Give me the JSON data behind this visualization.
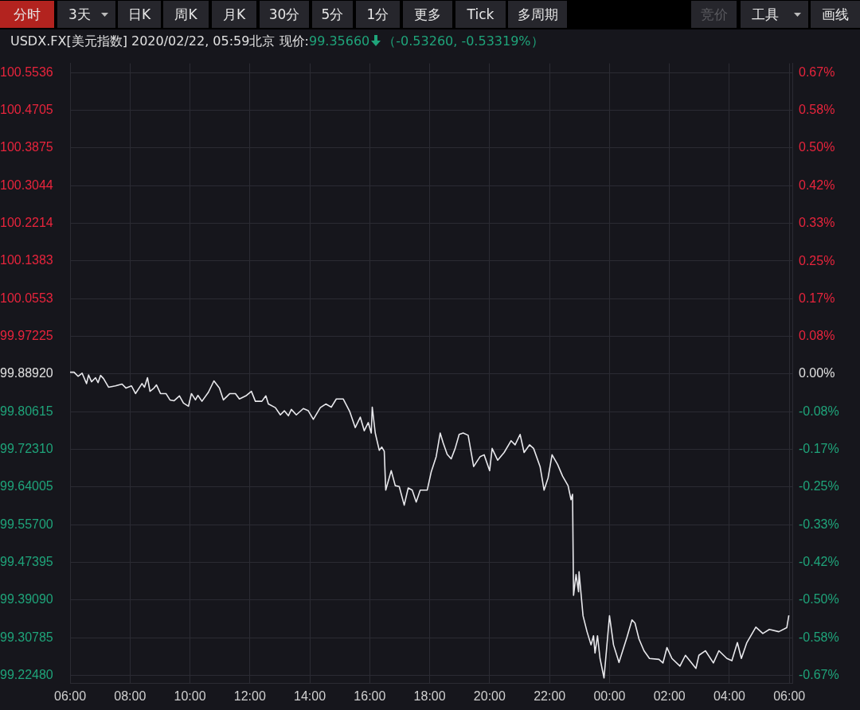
{
  "chart_data": {
    "type": "line",
    "title": "USDX.FX[美元指数]  2020/02/22, 05:59北京 现价:",
    "annotations": [
      "99.35660",
      "（-0.53260, -0.53319%）",
      "分时",
      "3天",
      "日K",
      "周K",
      "月K",
      "30分",
      "5分",
      "1分",
      "更多",
      "Tick",
      "多周期",
      "竞价",
      "工具",
      "画线"
    ],
    "x": [
      "2020-02-21T06:00",
      "2020-02-21T06:08",
      "2020-02-21T06:16",
      "2020-02-21T06:24",
      "2020-02-21T06:33",
      "2020-02-21T06:37",
      "2020-02-21T06:43",
      "2020-02-21T06:51",
      "2020-02-21T06:56",
      "2020-02-21T07:01",
      "2020-02-21T07:07",
      "2020-02-21T07:17",
      "2020-02-21T07:31",
      "2020-02-21T07:44",
      "2020-02-21T07:52",
      "2020-02-21T08:03",
      "2020-02-21T08:11",
      "2020-02-21T08:24",
      "2020-02-21T08:29",
      "2020-02-21T08:35",
      "2020-02-21T08:40",
      "2020-02-21T08:48",
      "2020-02-21T08:53",
      "2020-02-21T09:01",
      "2020-02-21T09:12",
      "2020-02-21T09:20",
      "2020-02-21T09:28",
      "2020-02-21T09:39",
      "2020-02-21T09:47",
      "2020-02-21T09:57",
      "2020-02-21T10:03",
      "2020-02-21T10:11",
      "2020-02-21T10:16",
      "2020-02-21T10:24",
      "2020-02-21T10:37",
      "2020-02-21T10:48",
      "2020-02-21T10:59",
      "2020-02-21T11:07",
      "2020-02-21T11:20",
      "2020-02-21T11:31",
      "2020-02-21T11:39",
      "2020-02-21T11:52",
      "2020-02-21T12:03",
      "2020-02-21T12:11",
      "2020-02-21T12:24",
      "2020-02-21T12:32",
      "2020-02-21T12:37",
      "2020-02-21T12:51",
      "2020-02-21T13:01",
      "2020-02-21T13:09",
      "2020-02-21T13:17",
      "2020-02-21T13:23",
      "2020-02-21T13:33",
      "2020-02-21T13:47",
      "2020-02-21T13:57",
      "2020-02-21T14:07",
      "2020-02-21T14:21",
      "2020-02-21T14:32",
      "2020-02-21T14:43",
      "2020-02-21T14:53",
      "2020-02-21T15:07",
      "2020-02-21T15:20",
      "2020-02-21T15:31",
      "2020-02-21T15:41",
      "2020-02-21T15:49",
      "2020-02-21T15:57",
      "2020-02-21T16:03",
      "2020-02-21T16:05",
      "2020-02-21T16:11",
      "2020-02-21T16:19",
      "2020-02-21T16:24",
      "2020-02-21T16:29",
      "2020-02-21T16:32",
      "2020-02-21T16:43",
      "2020-02-21T16:51",
      "2020-02-21T16:59",
      "2020-02-21T17:09",
      "2020-02-21T17:17",
      "2020-02-21T17:25",
      "2020-02-21T17:33",
      "2020-02-21T17:41",
      "2020-02-21T17:55",
      "2020-02-21T18:03",
      "2020-02-21T18:13",
      "2020-02-21T18:21",
      "2020-02-21T18:27",
      "2020-02-21T18:35",
      "2020-02-21T18:43",
      "2020-02-21T18:51",
      "2020-02-21T18:59",
      "2020-02-21T19:07",
      "2020-02-21T19:17",
      "2020-02-21T19:28",
      "2020-02-21T19:41",
      "2020-02-21T19:49",
      "2020-02-21T20:00",
      "2020-02-21T20:05",
      "2020-02-21T20:16",
      "2020-02-21T20:29",
      "2020-02-21T20:43",
      "2020-02-21T20:51",
      "2020-02-21T21:01",
      "2020-02-21T21:09",
      "2020-02-21T21:20",
      "2020-02-21T21:28",
      "2020-02-21T21:41",
      "2020-02-21T21:49",
      "2020-02-21T21:57",
      "2020-02-21T22:05",
      "2020-02-21T22:16",
      "2020-02-21T22:26",
      "2020-02-21T22:37",
      "2020-02-21T22:43",
      "2020-02-21T22:46",
      "2020-02-21T22:48",
      "2020-02-21T22:53",
      "2020-02-21T22:58",
      "2020-02-21T22:59",
      "2020-02-21T23:07",
      "2020-02-21T23:15",
      "2020-02-21T23:23",
      "2020-02-21T23:28",
      "2020-02-21T23:31",
      "2020-02-21T23:36",
      "2020-02-21T23:41",
      "2020-02-21T23:49",
      "2020-02-22T00:00",
      "2020-02-22T00:08",
      "2020-02-22T00:19",
      "2020-02-22T00:35",
      "2020-02-22T00:45",
      "2020-02-22T00:51",
      "2020-02-22T00:59",
      "2020-02-22T01:09",
      "2020-02-22T01:20",
      "2020-02-22T01:39",
      "2020-02-22T01:47",
      "2020-02-22T01:55",
      "2020-02-22T02:05",
      "2020-02-22T02:21",
      "2020-02-22T02:32",
      "2020-02-22T02:53",
      "2020-02-22T02:59",
      "2020-02-22T03:12",
      "2020-02-22T03:28",
      "2020-02-22T03:39",
      "2020-02-22T03:55",
      "2020-02-22T04:05",
      "2020-02-22T04:16",
      "2020-02-22T04:24",
      "2020-02-22T04:35",
      "2020-02-22T04:53",
      "2020-02-22T05:07",
      "2020-02-22T05:20",
      "2020-02-22T05:39",
      "2020-02-22T05:55",
      "2020-02-22T05:59"
    ],
    "series": [
      {
        "color": "#e8e8ec",
        "values": [
          99.893,
          99.893,
          99.884,
          99.891,
          99.868,
          99.887,
          99.872,
          99.881,
          99.87,
          99.886,
          99.879,
          99.86,
          99.863,
          99.867,
          99.858,
          99.863,
          99.846,
          99.868,
          99.86,
          99.881,
          99.851,
          99.858,
          99.865,
          99.846,
          99.846,
          99.832,
          99.83,
          99.841,
          99.825,
          99.818,
          99.846,
          99.832,
          99.842,
          99.829,
          99.849,
          99.874,
          99.858,
          99.832,
          99.846,
          99.846,
          99.834,
          99.841,
          99.851,
          99.829,
          99.829,
          99.841,
          99.823,
          99.815,
          99.799,
          99.808,
          99.797,
          99.811,
          99.799,
          99.813,
          99.808,
          99.789,
          99.815,
          99.823,
          99.816,
          99.834,
          99.834,
          99.806,
          99.771,
          99.794,
          99.764,
          99.782,
          99.759,
          99.816,
          99.759,
          99.721,
          99.728,
          99.719,
          99.633,
          99.676,
          99.643,
          99.641,
          99.6,
          99.638,
          99.633,
          99.607,
          99.633,
          99.633,
          99.673,
          99.707,
          99.759,
          99.737,
          99.712,
          99.702,
          99.725,
          99.756,
          99.759,
          99.754,
          99.685,
          99.707,
          99.711,
          99.676,
          99.725,
          99.699,
          99.716,
          99.742,
          99.733,
          99.756,
          99.716,
          99.733,
          99.725,
          99.685,
          99.633,
          99.66,
          99.711,
          99.69,
          99.664,
          99.643,
          99.612,
          99.624,
          99.401,
          99.447,
          99.409,
          99.453,
          99.356,
          99.321,
          99.292,
          99.312,
          99.274,
          99.312,
          99.262,
          99.219,
          99.356,
          99.292,
          99.253,
          99.309,
          99.347,
          99.34,
          99.305,
          99.279,
          99.262,
          99.26,
          99.252,
          99.286,
          99.262,
          99.245,
          99.269,
          99.24,
          99.269,
          99.279,
          99.252,
          99.279,
          99.262,
          99.257,
          99.297,
          99.262,
          99.297,
          99.331,
          99.317,
          99.326,
          99.321,
          99.33,
          99.357
        ]
      }
    ],
    "xlim": [
      "2020-02-21T06:00",
      "2020-02-22T06:06"
    ],
    "xticks": [
      {
        "value": "2020-02-21T06:00",
        "label": "06:00"
      },
      {
        "value": "2020-02-21T08:00",
        "label": "08:00"
      },
      {
        "value": "2020-02-21T10:00",
        "label": "10:00"
      },
      {
        "value": "2020-02-21T12:00",
        "label": "12:00"
      },
      {
        "value": "2020-02-21T14:00",
        "label": "14:00"
      },
      {
        "value": "2020-02-21T16:00",
        "label": "16:00"
      },
      {
        "value": "2020-02-21T18:00",
        "label": "18:00"
      },
      {
        "value": "2020-02-21T20:00",
        "label": "20:00"
      },
      {
        "value": "2020-02-21T22:00",
        "label": "22:00"
      },
      {
        "value": "2020-02-22T00:00",
        "label": "00:00"
      },
      {
        "value": "2020-02-22T02:00",
        "label": "02:00"
      },
      {
        "value": "2020-02-22T04:00",
        "label": "04:00"
      },
      {
        "value": "2020-02-22T06:00",
        "label": "06:00"
      }
    ],
    "ylim": [
      99.208,
      100.574
    ],
    "yticks": [
      100.5536,
      100.4705,
      100.3875,
      100.3044,
      100.2214,
      100.1383,
      100.0553,
      99.97225,
      {
        "value": 99.8892,
        "label": "99.88920"
      },
      99.80615,
      {
        "value": 99.7231,
        "label": "99.72310"
      },
      99.64005,
      {
        "value": 99.557,
        "label": "99.55700"
      },
      99.47395,
      {
        "value": 99.3909,
        "label": "99.39090"
      },
      99.30785,
      {
        "value": 99.2248,
        "label": "99.22480"
      }
    ],
    "y2lim": [
      -0.682,
      0.686
    ],
    "y2ticks": [
      {
        "value": 0.665,
        "label": "0.67%"
      },
      {
        "value": 0.582,
        "label": "0.58%"
      },
      {
        "value": 0.499,
        "label": "0.50%"
      },
      {
        "value": 0.416,
        "label": "0.42%"
      },
      {
        "value": 0.333,
        "label": "0.33%"
      },
      {
        "value": 0.249,
        "label": "0.25%"
      },
      {
        "value": 0.166,
        "label": "0.17%"
      },
      {
        "value": 0.083,
        "label": "0.08%"
      },
      {
        "value": 0,
        "label": "0.00%"
      },
      {
        "value": -0.083,
        "label": "-0.08%"
      },
      {
        "value": -0.166,
        "label": "-0.17%"
      },
      {
        "value": -0.249,
        "label": "-0.25%"
      },
      {
        "value": -0.333,
        "label": "-0.33%"
      },
      {
        "value": -0.416,
        "label": "-0.42%"
      },
      {
        "value": -0.499,
        "label": "-0.50%"
      },
      {
        "value": -0.582,
        "label": "-0.58%"
      },
      {
        "value": -0.665,
        "label": "-0.67%"
      }
    ],
    "grid": true
  }
}
